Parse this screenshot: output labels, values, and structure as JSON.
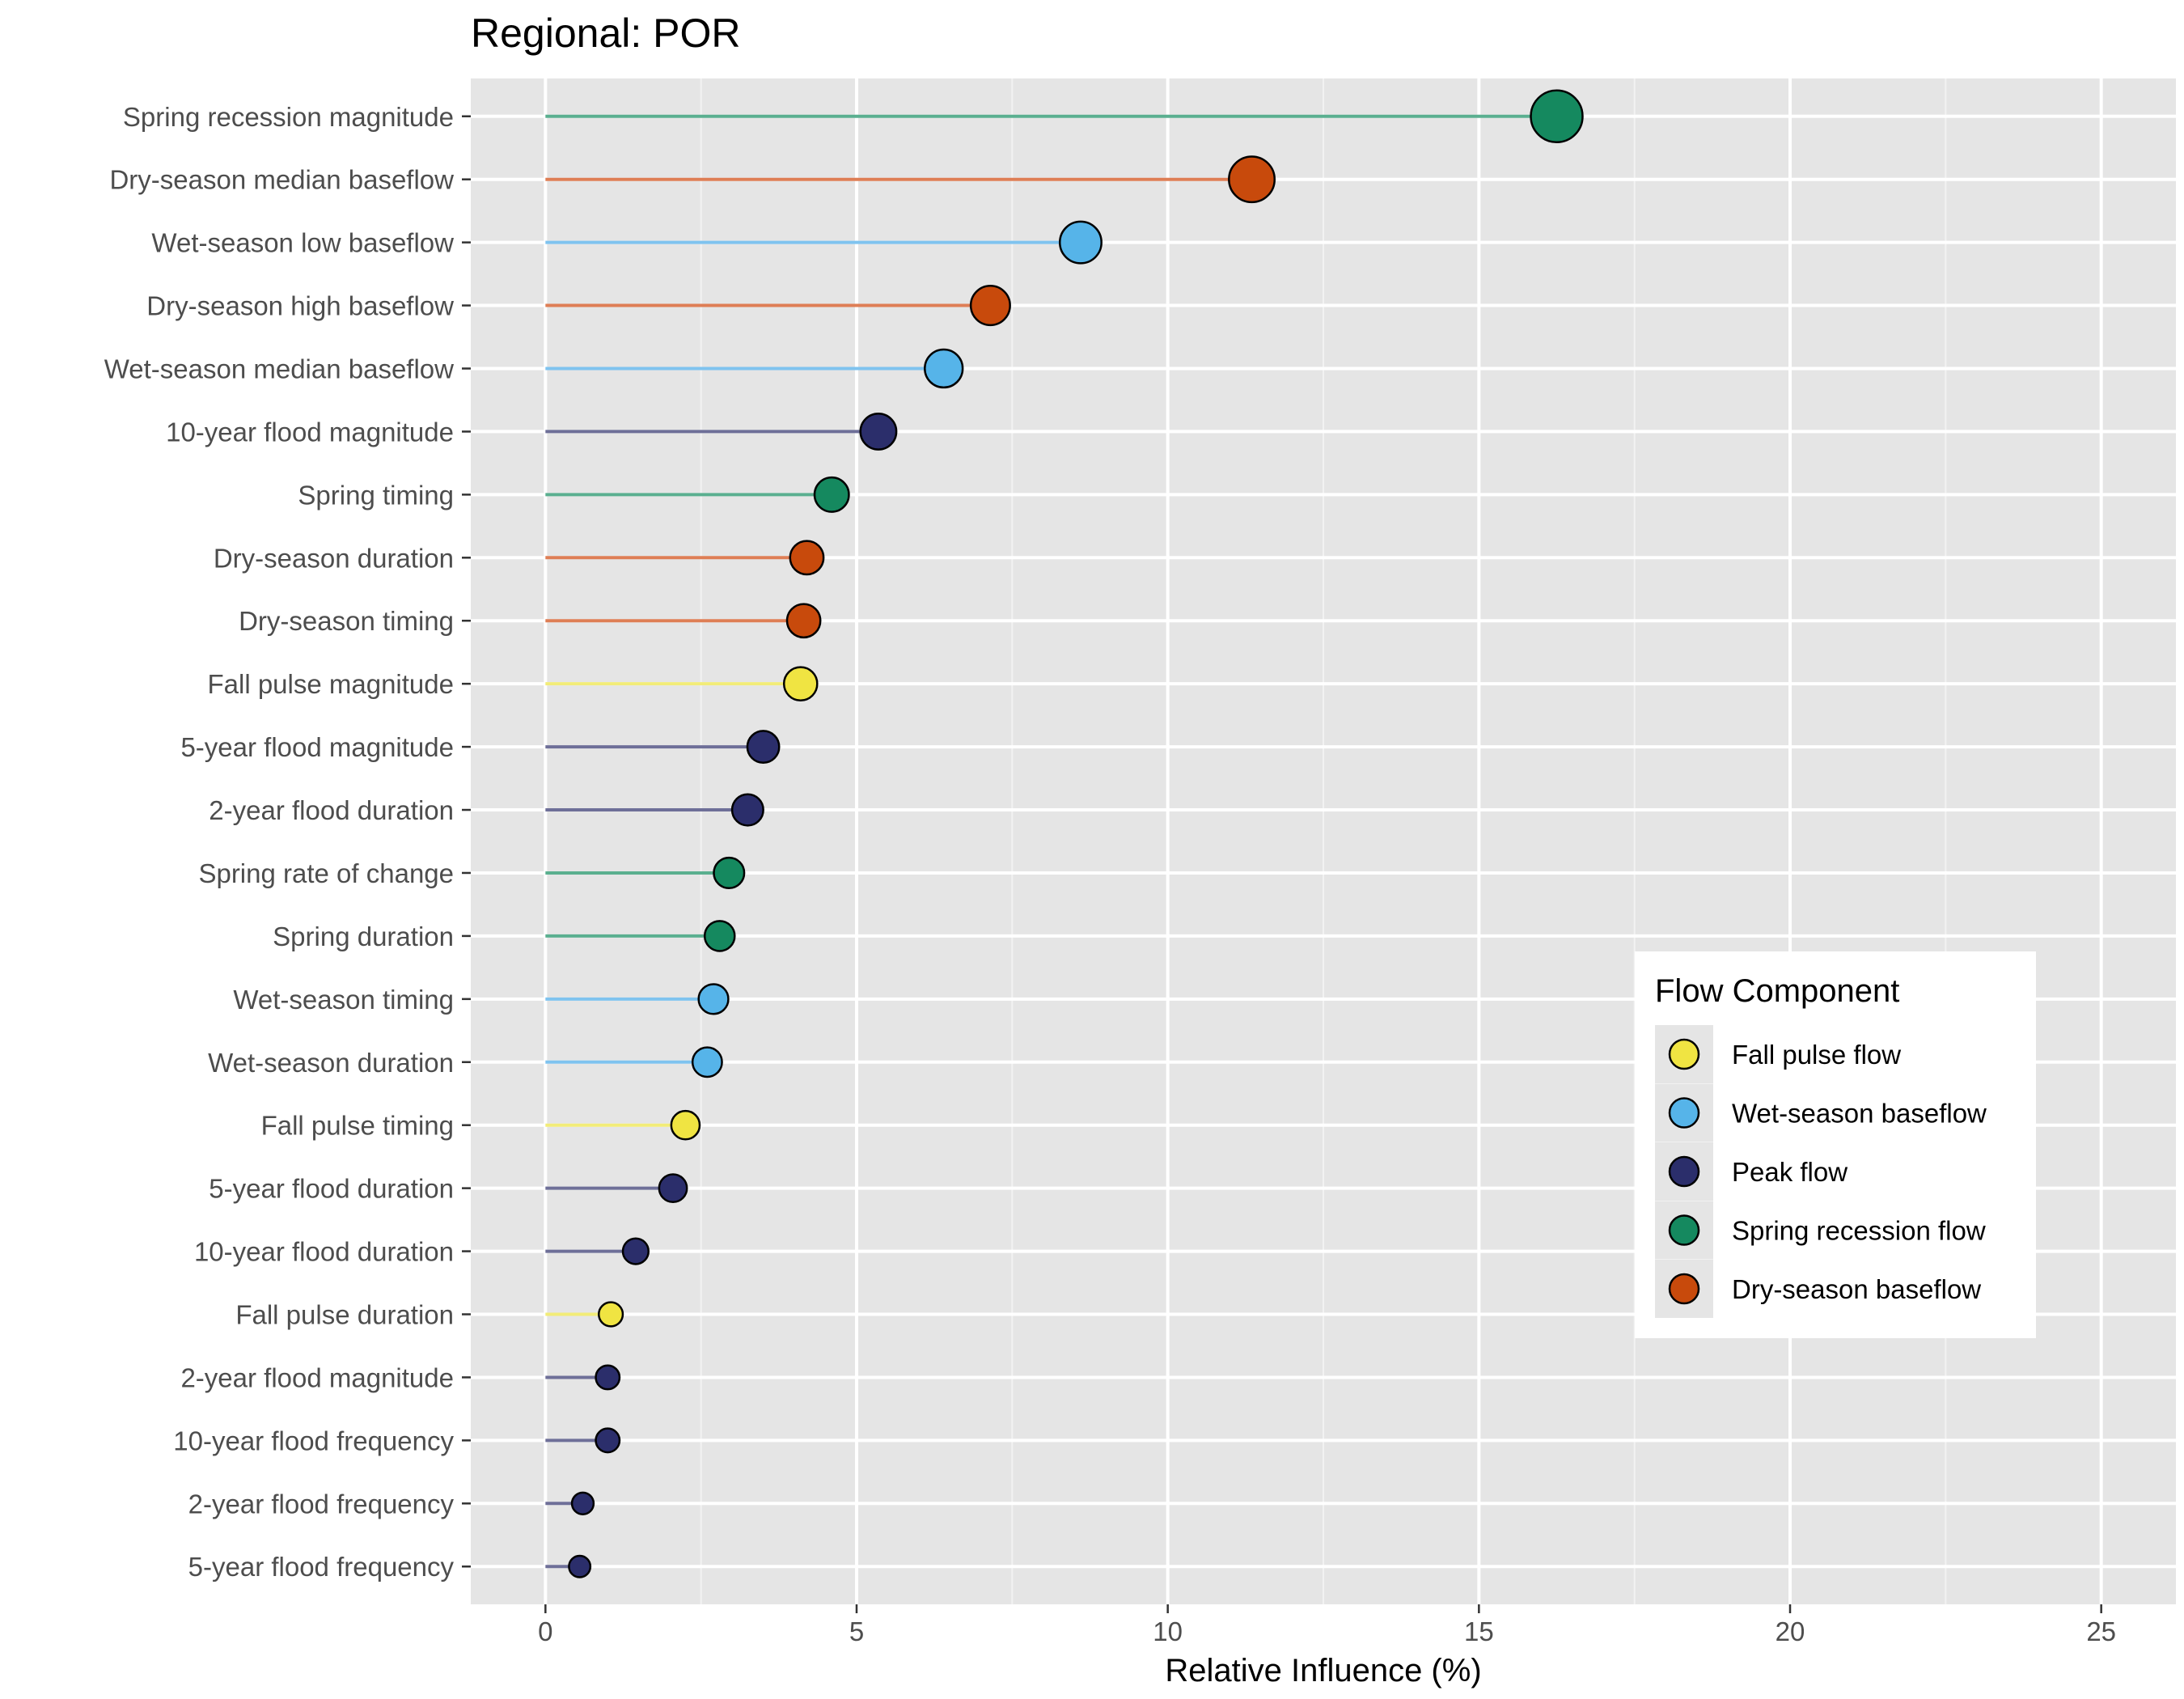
{
  "chart_data": {
    "type": "lollipop",
    "title": "Regional: POR",
    "xlabel": "Relative Influence (%)",
    "ylabel": "",
    "xlim": [
      -1.2,
      26.2
    ],
    "xticks": [
      0,
      5,
      10,
      15,
      20,
      25
    ],
    "xtick_labels": [
      "0",
      "5",
      "10",
      "15",
      "20",
      "25"
    ],
    "grid": true,
    "legend": {
      "title": "Flow Component",
      "placement": "right",
      "entries": [
        {
          "key": "fall",
          "label": "Fall pulse flow"
        },
        {
          "key": "wet",
          "label": "Wet-season baseflow"
        },
        {
          "key": "peak",
          "label": "Peak flow"
        },
        {
          "key": "spring",
          "label": "Spring recession flow"
        },
        {
          "key": "dry",
          "label": "Dry-season baseflow"
        }
      ]
    },
    "colors": {
      "fall": {
        "point": "#F0E442",
        "line": "#F2EC78"
      },
      "wet": {
        "point": "#56B4E9",
        "line": "#7FC3EF"
      },
      "peak": {
        "point": "#2B2E6B",
        "line": "#6E6F98"
      },
      "spring": {
        "point": "#15895F",
        "line": "#5AAF8F"
      },
      "dry": {
        "point": "#C84A0C",
        "line": "#DE7E55"
      }
    },
    "points": [
      {
        "label": "Spring recession magnitude",
        "value": 16.25,
        "component": "spring"
      },
      {
        "label": "Dry-season median baseflow",
        "value": 11.35,
        "component": "dry"
      },
      {
        "label": "Wet-season low baseflow",
        "value": 8.6,
        "component": "wet"
      },
      {
        "label": "Dry-season high baseflow",
        "value": 7.15,
        "component": "dry"
      },
      {
        "label": "Wet-season median baseflow",
        "value": 6.4,
        "component": "wet"
      },
      {
        "label": "10-year flood magnitude",
        "value": 5.35,
        "component": "peak"
      },
      {
        "label": "Spring timing",
        "value": 4.6,
        "component": "spring"
      },
      {
        "label": "Dry-season duration",
        "value": 4.2,
        "component": "dry"
      },
      {
        "label": "Dry-season timing",
        "value": 4.15,
        "component": "dry"
      },
      {
        "label": "Fall pulse magnitude",
        "value": 4.1,
        "component": "fall"
      },
      {
        "label": "5-year flood magnitude",
        "value": 3.5,
        "component": "peak"
      },
      {
        "label": "2-year flood duration",
        "value": 3.25,
        "component": "peak"
      },
      {
        "label": "Spring rate of change",
        "value": 2.95,
        "component": "spring"
      },
      {
        "label": "Spring duration",
        "value": 2.8,
        "component": "spring"
      },
      {
        "label": "Wet-season timing",
        "value": 2.7,
        "component": "wet"
      },
      {
        "label": "Wet-season duration",
        "value": 2.6,
        "component": "wet"
      },
      {
        "label": "Fall pulse timing",
        "value": 2.25,
        "component": "fall"
      },
      {
        "label": "5-year flood duration",
        "value": 2.05,
        "component": "peak"
      },
      {
        "label": "10-year flood duration",
        "value": 1.45,
        "component": "peak"
      },
      {
        "label": "Fall pulse duration",
        "value": 1.05,
        "component": "fall"
      },
      {
        "label": "2-year flood magnitude",
        "value": 1.0,
        "component": "peak"
      },
      {
        "label": "10-year flood frequency",
        "value": 1.0,
        "component": "peak"
      },
      {
        "label": "2-year flood frequency",
        "value": 0.6,
        "component": "peak"
      },
      {
        "label": "5-year flood frequency",
        "value": 0.55,
        "component": "peak"
      }
    ]
  }
}
